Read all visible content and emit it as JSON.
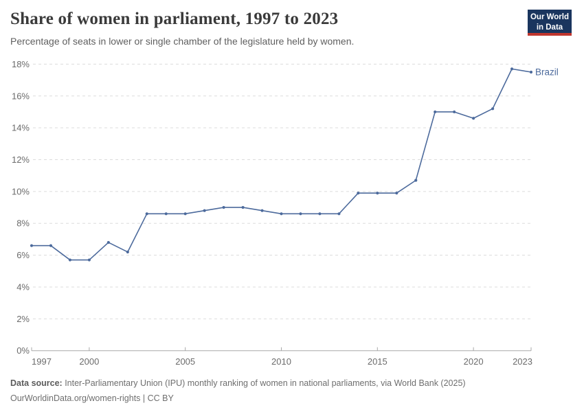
{
  "header": {
    "title": "Share of women in parliament, 1997 to 2023",
    "subtitle": "Percentage of seats in lower or single chamber of the legislature held by women.",
    "logo": {
      "line1": "Our World",
      "line2": "in Data",
      "bg_color": "#1a355e",
      "accent_color": "#c0362e"
    }
  },
  "chart_data": {
    "type": "line",
    "title": "Share of women in parliament, 1997 to 2023",
    "subtitle": "Percentage of seats in lower or single chamber of the legislature held by women.",
    "xlabel": "",
    "ylabel": "",
    "xlim": [
      1997,
      2023
    ],
    "ylim": [
      0,
      18
    ],
    "x_ticks": [
      1997,
      2000,
      2005,
      2010,
      2015,
      2020,
      2023
    ],
    "y_ticks": [
      0,
      2,
      4,
      6,
      8,
      10,
      12,
      14,
      16,
      18
    ],
    "y_tick_suffix": "%",
    "grid": "horizontal-dashed",
    "legend_position": "end-of-line-label",
    "end_label": "Brazil",
    "series": [
      {
        "name": "Brazil",
        "color": "#4C6A9C",
        "years": [
          1997,
          1998,
          1999,
          2000,
          2001,
          2002,
          2003,
          2004,
          2005,
          2006,
          2007,
          2008,
          2009,
          2010,
          2011,
          2012,
          2013,
          2014,
          2015,
          2016,
          2017,
          2018,
          2019,
          2020,
          2021,
          2022,
          2023
        ],
        "values": [
          6.6,
          6.6,
          5.7,
          5.7,
          6.8,
          6.2,
          8.6,
          8.6,
          8.6,
          8.8,
          9.0,
          9.0,
          8.8,
          8.6,
          8.6,
          8.6,
          8.6,
          9.9,
          9.9,
          9.9,
          10.7,
          15.0,
          15.0,
          14.6,
          15.2,
          17.7,
          17.5
        ]
      }
    ],
    "colors": {
      "grid": "#dcdcdc",
      "axis": "#a8a8a8",
      "tick_label": "#6b6b6b"
    }
  },
  "footer": {
    "source_label": "Data source:",
    "source_text": " Inter-Parliamentary Union (IPU) monthly ranking of women in national parliaments, via World Bank (2025)",
    "link_line": "OurWorldinData.org/women-rights | CC BY"
  }
}
